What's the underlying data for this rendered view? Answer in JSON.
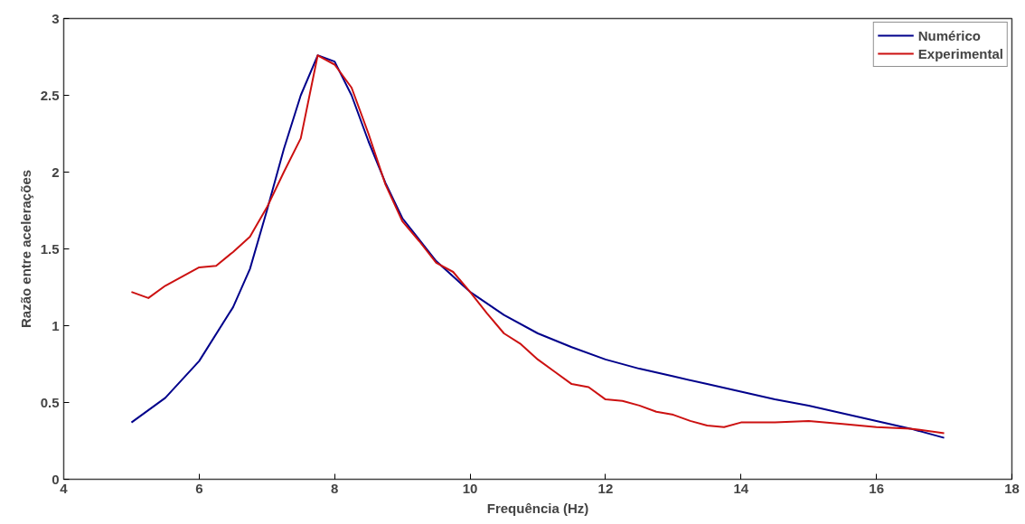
{
  "chart_data": {
    "type": "line",
    "xlabel": "Frequência (Hz)",
    "ylabel": "Razão entre acelerações",
    "xlim": [
      4,
      18
    ],
    "xticks": [
      4,
      6,
      8,
      10,
      12,
      14,
      16,
      18
    ],
    "ylim": [
      0,
      3
    ],
    "yticks": [
      0,
      0.5,
      1,
      1.5,
      2,
      2.5,
      3
    ],
    "grid": false,
    "legend": "top right",
    "marker": "none",
    "line_style": "solid",
    "series": [
      {
        "name": "Numérico",
        "color": "#00008b",
        "x": [
          5,
          5.5,
          6,
          6.5,
          6.75,
          7,
          7.25,
          7.5,
          7.75,
          8,
          8.25,
          8.5,
          8.75,
          9,
          9.5,
          10,
          10.5,
          11,
          11.5,
          12,
          12.5,
          13,
          13.5,
          14,
          14.5,
          15,
          15.5,
          16,
          16.5,
          17
        ],
        "values": [
          0.37,
          0.53,
          0.77,
          1.12,
          1.37,
          1.75,
          2.15,
          2.5,
          2.76,
          2.72,
          2.5,
          2.2,
          1.93,
          1.7,
          1.42,
          1.22,
          1.07,
          0.95,
          0.86,
          0.78,
          0.72,
          0.67,
          0.62,
          0.57,
          0.52,
          0.48,
          0.43,
          0.38,
          0.33,
          0.27
        ]
      },
      {
        "name": "Experimental",
        "color": "#cc1111",
        "x": [
          5,
          5.25,
          5.5,
          5.75,
          6,
          6.25,
          6.5,
          6.75,
          7,
          7.25,
          7.5,
          7.75,
          8,
          8.25,
          8.5,
          8.75,
          9,
          9.25,
          9.5,
          9.75,
          10,
          10.25,
          10.5,
          10.75,
          11,
          11.25,
          11.5,
          11.75,
          12,
          12.25,
          12.5,
          12.75,
          13,
          13.25,
          13.5,
          13.75,
          14,
          14.5,
          15,
          15.5,
          16,
          16.5,
          17
        ],
        "values": [
          1.22,
          1.18,
          1.26,
          1.32,
          1.38,
          1.39,
          1.48,
          1.58,
          1.77,
          2.0,
          2.22,
          2.76,
          2.7,
          2.55,
          2.25,
          1.92,
          1.68,
          1.55,
          1.41,
          1.35,
          1.22,
          1.08,
          0.95,
          0.88,
          0.78,
          0.7,
          0.62,
          0.6,
          0.52,
          0.51,
          0.48,
          0.44,
          0.42,
          0.38,
          0.35,
          0.34,
          0.37,
          0.37,
          0.38,
          0.36,
          0.34,
          0.33,
          0.3
        ]
      }
    ]
  }
}
